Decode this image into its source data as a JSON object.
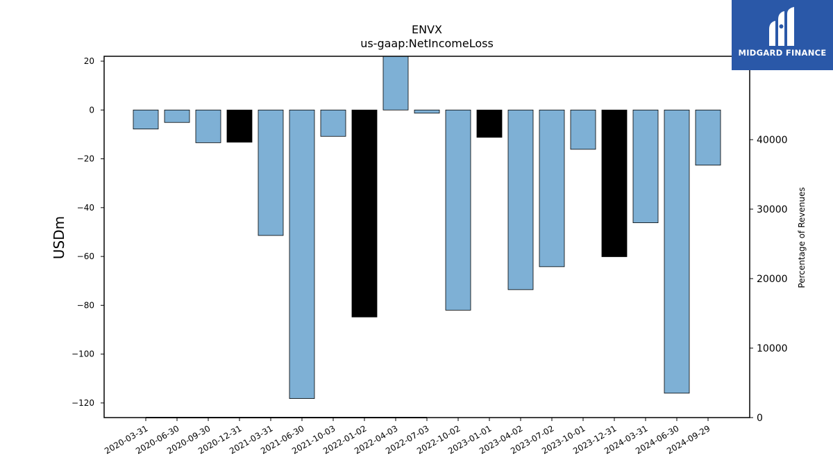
{
  "chart_data": {
    "type": "bar",
    "title": "ENVX",
    "subtitle": "us-gaap:NetIncomeLoss",
    "ylabel": "USDm",
    "y2label": "Percentage of Revenues",
    "ylim": [
      -126,
      22
    ],
    "y2lim": [
      0,
      52000
    ],
    "yticks": [
      20,
      0,
      -20,
      -40,
      -60,
      -80,
      -100,
      -120
    ],
    "y2ticks": [
      40000,
      30000,
      20000,
      10000,
      0
    ],
    "categories": [
      "2020-03-31",
      "2020-06-30",
      "2020-09-30",
      "2020-12-31",
      "2021-03-31",
      "2021-06-30",
      "2021-10-03",
      "2022-01-02",
      "2022-04-03",
      "2022-07-03",
      "2022-10-02",
      "2023-01-01",
      "2023-04-02",
      "2023-07-02",
      "2023-10-01",
      "2023-12-31",
      "2024-03-31",
      "2024-06-30",
      "2024-09-29"
    ],
    "values": [
      -7.8,
      -5.1,
      -13.4,
      -13.2,
      -51.4,
      -118.2,
      -10.8,
      -84.8,
      22.3,
      -1.3,
      -82.0,
      -11.2,
      -73.6,
      -64.2,
      -16.1,
      -60.1,
      -46.2,
      -116.0,
      -22.6
    ],
    "bar_colors": [
      "#7eb0d5",
      "#7eb0d5",
      "#7eb0d5",
      "#000000",
      "#7eb0d5",
      "#7eb0d5",
      "#7eb0d5",
      "#000000",
      "#7eb0d5",
      "#7eb0d5",
      "#7eb0d5",
      "#000000",
      "#7eb0d5",
      "#7eb0d5",
      "#7eb0d5",
      "#000000",
      "#7eb0d5",
      "#7eb0d5",
      "#7eb0d5"
    ],
    "secondary_line": {
      "y2_values": [
        0,
        0,
        0,
        0,
        0,
        0,
        0,
        0,
        0,
        0
      ],
      "color": "#000000"
    },
    "grid": false
  },
  "logo": {
    "text": "MIDGARD FINANCE",
    "background": "#2a58a8"
  }
}
